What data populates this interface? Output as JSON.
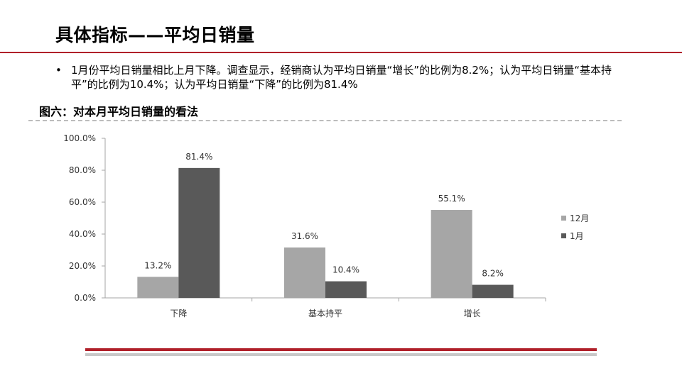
{
  "page": {
    "title": "具体指标——平均日销量",
    "bullet_marker": "•",
    "bullet_text": "1月份平均日销量相比上月下降。调查显示，经销商认为平均日销量“增长”的比例为8.2%；认为平均日销量“基本持平”的比例为10.4%；认为平均日销量“下降”的比例为81.4%",
    "figure_title": "图六：对本月平均日销量的看法",
    "accent_color": "#b0202a"
  },
  "chart_data": {
    "type": "bar",
    "categories": [
      "下降",
      "基本持平",
      "增长"
    ],
    "series": [
      {
        "name": "12月",
        "values": [
          13.2,
          31.6,
          55.1
        ],
        "labels": [
          "13.2%",
          "31.6%",
          "55.1%"
        ],
        "color": "#a6a6a6"
      },
      {
        "name": "1月",
        "values": [
          81.4,
          10.4,
          8.2
        ],
        "labels": [
          "81.4%",
          "10.4%",
          "8.2%"
        ],
        "color": "#595959"
      }
    ],
    "ylim": [
      0,
      100
    ],
    "yticks": [
      "0.0%",
      "20.0%",
      "40.0%",
      "60.0%",
      "80.0%",
      "100.0%"
    ],
    "title": "",
    "xlabel": "",
    "ylabel": "",
    "grid": false,
    "legend_position": "right"
  }
}
